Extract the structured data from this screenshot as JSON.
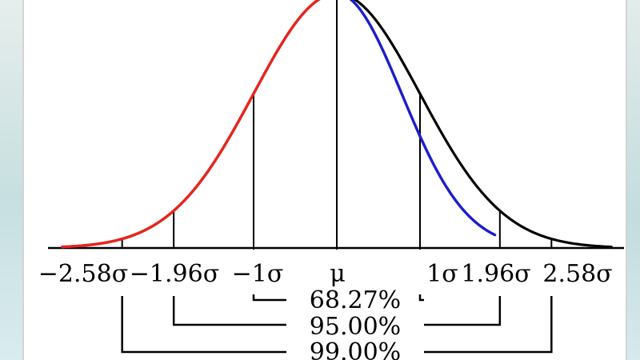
{
  "chart_data": {
    "type": "line",
    "title": "",
    "xlabel": "",
    "ylabel": "",
    "xlim": [
      -3.2,
      3.4
    ],
    "ylim": [
      0,
      0.4
    ],
    "ticks": [
      {
        "x": -2.58,
        "label": "−2.58σ"
      },
      {
        "x": -1.96,
        "label": "−1.96σ"
      },
      {
        "x": -1.0,
        "label": "−1σ"
      },
      {
        "x": 0.0,
        "label": "μ"
      },
      {
        "x": 1.0,
        "label": "1σ"
      },
      {
        "x": 1.96,
        "label": "1.96σ"
      },
      {
        "x": 2.58,
        "label": "2.58σ"
      }
    ],
    "series": [
      {
        "color": "#000000",
        "function": "normal_pdf",
        "mean": 0,
        "sd": 1,
        "x_range": [
          -3.3,
          3.3
        ]
      },
      {
        "color": "#e8251d",
        "function": "normal_pdf",
        "mean": 0,
        "sd": 1,
        "x_range": [
          -3.3,
          0
        ]
      },
      {
        "color": "#1c1ccc",
        "function": "normal_pdf",
        "mean": 0,
        "sd": 0.78,
        "x_range": [
          0,
          1.9
        ]
      }
    ],
    "intervals": [
      {
        "from": -1.0,
        "to": 1.0,
        "label": "68.27%"
      },
      {
        "from": -1.96,
        "to": 1.96,
        "label": "95.00%"
      },
      {
        "from": -2.58,
        "to": 2.58,
        "label": "99.00%"
      }
    ]
  }
}
